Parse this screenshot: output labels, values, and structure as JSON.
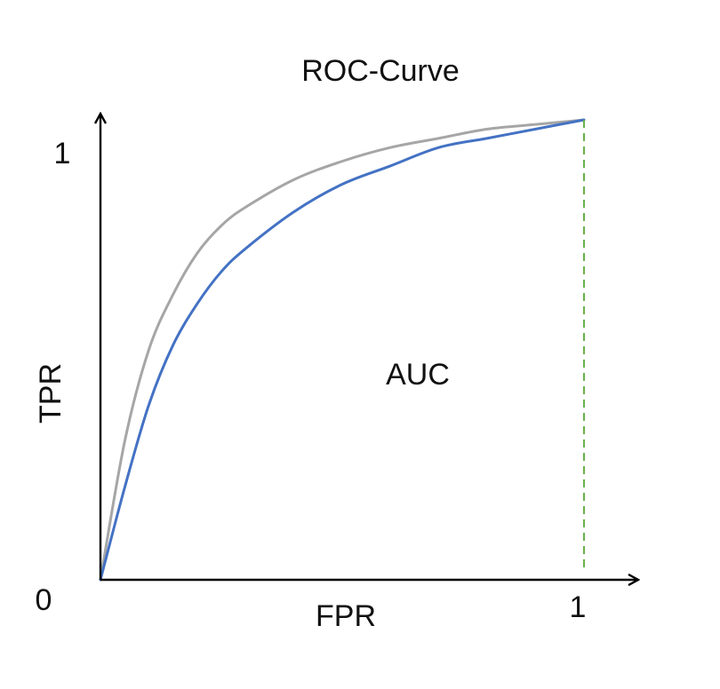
{
  "chart_data": {
    "type": "line",
    "title": "ROC-Curve",
    "xlabel": "FPR",
    "ylabel": "TPR",
    "xlim": [
      0,
      1
    ],
    "ylim": [
      0,
      1
    ],
    "x_ticks": [
      "0",
      "1"
    ],
    "y_ticks": [
      "1"
    ],
    "grid": false,
    "annotation": "AUC",
    "reference_line": {
      "x": 1,
      "style": "dashed",
      "color": "#6ab04c"
    },
    "series": [
      {
        "color": "#a6a6a6",
        "x": [
          0,
          0.05,
          0.1,
          0.15,
          0.2,
          0.25,
          0.3,
          0.4,
          0.5,
          0.6,
          0.7,
          0.8,
          0.9,
          1.0
        ],
        "y": [
          0,
          0.3,
          0.5,
          0.62,
          0.71,
          0.77,
          0.81,
          0.87,
          0.91,
          0.94,
          0.96,
          0.98,
          0.99,
          1.0
        ]
      },
      {
        "color": "#4472c4",
        "x": [
          0,
          0.05,
          0.1,
          0.15,
          0.2,
          0.25,
          0.3,
          0.4,
          0.5,
          0.6,
          0.7,
          0.8,
          0.9,
          1.0
        ],
        "y": [
          0,
          0.2,
          0.38,
          0.51,
          0.6,
          0.67,
          0.72,
          0.8,
          0.86,
          0.9,
          0.94,
          0.96,
          0.98,
          1.0
        ]
      }
    ]
  }
}
